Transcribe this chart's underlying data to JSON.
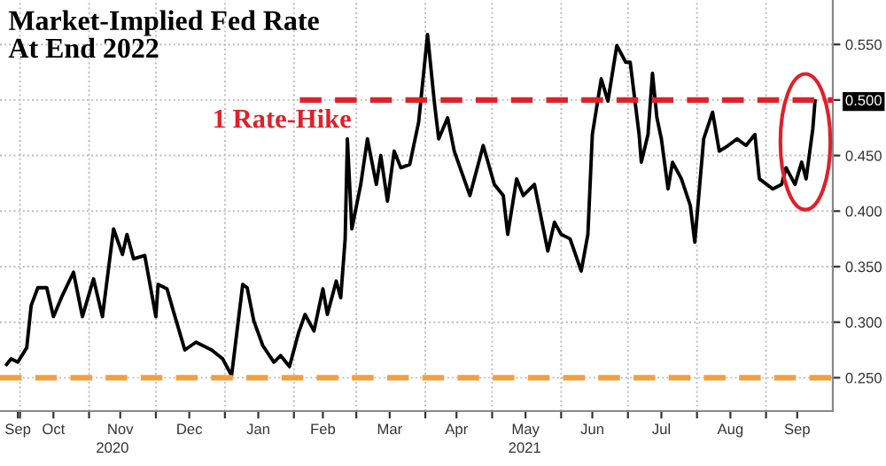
{
  "chart_data": {
    "type": "line",
    "title": "Market-Implied Fed Rate\nAt End 2022",
    "annotations": [
      "2020",
      "2021"
    ],
    "x": [
      "2020-09-25",
      "2020-09-27",
      "2020-09-30",
      "2020-10-04",
      "2020-10-06",
      "2020-10-09",
      "2020-10-13",
      "2020-10-16",
      "2020-10-20",
      "2020-10-25",
      "2020-10-29",
      "2020-11-03",
      "2020-11-07",
      "2020-11-12",
      "2020-11-16",
      "2020-11-18",
      "2020-11-21",
      "2020-11-26",
      "2020-12-01",
      "2020-12-02",
      "2020-12-06",
      "2020-12-09",
      "2020-12-14",
      "2020-12-19",
      "2020-12-26",
      "2020-12-31",
      "2021-01-04",
      "2021-01-09",
      "2021-01-11",
      "2021-01-14",
      "2021-01-18",
      "2021-01-23",
      "2021-01-26",
      "2021-01-30",
      "2021-02-03",
      "2021-02-06",
      "2021-02-10",
      "2021-02-14",
      "2021-02-16",
      "2021-02-20",
      "2021-02-22",
      "2021-02-24",
      "2021-02-25",
      "2021-02-27",
      "2021-03-03",
      "2021-03-06",
      "2021-03-10",
      "2021-03-12",
      "2021-03-15",
      "2021-03-18",
      "2021-03-21",
      "2021-03-25",
      "2021-03-29",
      "2021-04-02",
      "2021-04-05",
      "2021-04-07",
      "2021-04-11",
      "2021-04-14",
      "2021-04-21",
      "2021-04-27",
      "2021-05-02",
      "2021-05-06",
      "2021-05-08",
      "2021-05-12",
      "2021-05-15",
      "2021-05-20",
      "2021-05-26",
      "2021-05-29",
      "2021-06-01",
      "2021-06-05",
      "2021-06-10",
      "2021-06-13",
      "2021-06-15",
      "2021-06-19",
      "2021-06-22",
      "2021-06-26",
      "2021-06-30",
      "2021-07-02",
      "2021-07-06",
      "2021-07-07",
      "2021-07-10",
      "2021-07-12",
      "2021-07-14",
      "2021-07-16",
      "2021-07-19",
      "2021-07-21",
      "2021-07-25",
      "2021-07-29",
      "2021-07-31",
      "2021-08-04",
      "2021-08-08",
      "2021-08-11",
      "2021-08-15",
      "2021-08-19",
      "2021-08-23",
      "2021-08-27",
      "2021-08-29",
      "2021-09-04",
      "2021-09-08",
      "2021-09-10",
      "2021-09-14",
      "2021-09-17",
      "2021-09-19",
      "2021-09-22",
      "2021-09-23"
    ],
    "series": [
      {
        "color": "#000000",
        "values": [
          0.262,
          0.267,
          0.264,
          0.277,
          0.315,
          0.331,
          0.331,
          0.305,
          0.324,
          0.345,
          0.305,
          0.339,
          0.305,
          0.384,
          0.361,
          0.379,
          0.357,
          0.36,
          0.305,
          0.334,
          0.33,
          0.309,
          0.275,
          0.282,
          0.275,
          0.267,
          0.252,
          0.334,
          0.331,
          0.301,
          0.279,
          0.264,
          0.27,
          0.26,
          0.29,
          0.307,
          0.292,
          0.33,
          0.307,
          0.337,
          0.322,
          0.375,
          0.465,
          0.384,
          0.424,
          0.465,
          0.424,
          0.45,
          0.409,
          0.454,
          0.439,
          0.442,
          0.48,
          0.559,
          0.499,
          0.465,
          0.484,
          0.454,
          0.414,
          0.459,
          0.424,
          0.414,
          0.379,
          0.429,
          0.414,
          0.424,
          0.364,
          0.39,
          0.379,
          0.375,
          0.346,
          0.379,
          0.469,
          0.519,
          0.499,
          0.549,
          0.534,
          0.534,
          0.469,
          0.444,
          0.469,
          0.524,
          0.484,
          0.465,
          0.42,
          0.444,
          0.429,
          0.405,
          0.372,
          0.465,
          0.489,
          0.454,
          0.459,
          0.465,
          0.459,
          0.469,
          0.429,
          0.42,
          0.424,
          0.439,
          0.424,
          0.444,
          0.429,
          0.474,
          0.499
        ]
      }
    ],
    "xlim": [
      "2020-09-22",
      "2021-10-01"
    ],
    "xticks": [
      {
        "value": "2020-09-30",
        "label": "Sep"
      },
      {
        "value": "2020-10-01",
        "label": null
      },
      {
        "value": "2020-10-16",
        "label": "Oct"
      },
      {
        "value": "2020-11-01",
        "label": null
      },
      {
        "value": "2020-11-15",
        "label": "Nov"
      },
      {
        "value": "2020-12-01",
        "label": null
      },
      {
        "value": "2020-12-16",
        "label": "Dec"
      },
      {
        "value": "2021-01-01",
        "label": null
      },
      {
        "value": "2021-01-16",
        "label": "Jan"
      },
      {
        "value": "2021-02-01",
        "label": null
      },
      {
        "value": "2021-02-14",
        "label": "Feb"
      },
      {
        "value": "2021-03-01",
        "label": null
      },
      {
        "value": "2021-03-16",
        "label": "Mar"
      },
      {
        "value": "2021-04-01",
        "label": null
      },
      {
        "value": "2021-04-15",
        "label": "Apr"
      },
      {
        "value": "2021-05-01",
        "label": null
      },
      {
        "value": "2021-05-16",
        "label": "May"
      },
      {
        "value": "2021-06-01",
        "label": null
      },
      {
        "value": "2021-06-15",
        "label": "Jun"
      },
      {
        "value": "2021-07-01",
        "label": null
      },
      {
        "value": "2021-07-16",
        "label": "Jul"
      },
      {
        "value": "2021-08-01",
        "label": null
      },
      {
        "value": "2021-08-16",
        "label": "Aug"
      },
      {
        "value": "2021-09-01",
        "label": null
      },
      {
        "value": "2021-09-15",
        "label": "Sep"
      }
    ],
    "ylim": [
      0.22,
      0.59
    ],
    "yticks": [
      {
        "value": 0.25,
        "label": "0.250"
      },
      {
        "value": 0.3,
        "label": "0.300"
      },
      {
        "value": 0.35,
        "label": "0.350"
      },
      {
        "value": 0.4,
        "label": "0.400"
      },
      {
        "value": 0.45,
        "label": "0.450"
      },
      {
        "value": 0.5,
        "label": "0.500"
      },
      {
        "value": 0.55,
        "label": "0.550"
      }
    ],
    "ref_lines": [
      {
        "axis": "y",
        "value": 0.5,
        "label": "1 Rate-Hike",
        "color": "#e0202a",
        "line_style": "dashed"
      },
      {
        "axis": "y",
        "value": 0.25,
        "color": "#f0a040",
        "line_style": "dashed"
      }
    ],
    "grid": true,
    "legend": false
  }
}
